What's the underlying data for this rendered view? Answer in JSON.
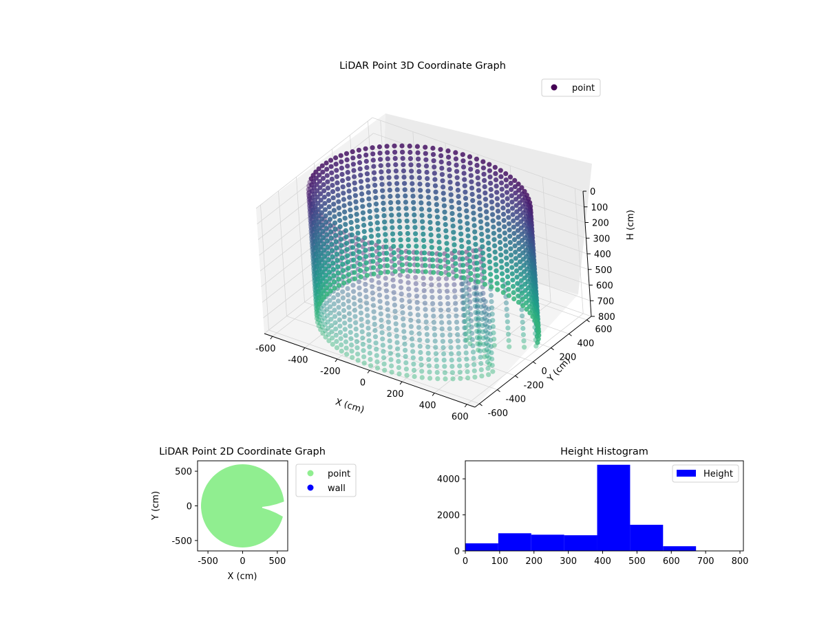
{
  "chart_data": [
    {
      "type": "scatter",
      "projection": "3d",
      "title": "LiDAR Point 3D Coordinate Graph",
      "xlabel": "X (cm)",
      "ylabel": "Y (cm)",
      "zlabel": "H (cm)",
      "xlim": [
        -650,
        650
      ],
      "ylim": [
        -650,
        650
      ],
      "zlim": [
        800,
        0
      ],
      "x_ticks": [
        -600,
        -400,
        -200,
        0,
        200,
        400,
        600
      ],
      "y_ticks": [
        -600,
        -400,
        -200,
        0,
        200,
        400,
        600
      ],
      "z_ticks": [
        0,
        100,
        200,
        300,
        400,
        500,
        600,
        700,
        800
      ],
      "legend": {
        "placement": "top-right",
        "entries": [
          "point"
        ]
      },
      "colormap": "viridis",
      "series": [
        {
          "name": "point",
          "shape": "cylindrical wall of points with an inward notch",
          "radius": 600,
          "h_range": [
            0,
            800
          ],
          "notch_angle_deg": [
            -25,
            15
          ],
          "notch_depth_cm": 370
        }
      ],
      "colors": {
        "legend_marker": "#440154"
      }
    },
    {
      "type": "scatter",
      "title": "LiDAR Point 2D Coordinate Graph",
      "xlabel": "X (cm)",
      "ylabel": "Y (cm)",
      "xlim": [
        -650,
        650
      ],
      "ylim": [
        -650,
        650
      ],
      "x_ticks": [
        -500,
        0,
        500
      ],
      "y_ticks": [
        -500,
        0,
        500
      ],
      "legend": {
        "placement": "outside-right",
        "entries": [
          "point",
          "wall"
        ]
      },
      "series": [
        {
          "name": "point",
          "color": "#90ee90",
          "shape": "disc with notch",
          "radius": 600
        },
        {
          "name": "wall",
          "color": "#0000ff"
        }
      ]
    },
    {
      "type": "bar",
      "subtype": "histogram",
      "title": "Height Histogram",
      "xlabel": "",
      "ylabel": "",
      "xlim": [
        0,
        810
      ],
      "ylim": [
        0,
        5000
      ],
      "x_ticks": [
        0,
        100,
        200,
        300,
        400,
        500,
        600,
        700,
        800
      ],
      "y_ticks": [
        0,
        2000,
        4000
      ],
      "bin_edges": [
        0,
        96,
        192,
        288,
        384,
        480,
        576,
        672,
        768
      ],
      "values": [
        420,
        980,
        900,
        870,
        4780,
        1450,
        260,
        0
      ],
      "legend": {
        "placement": "top-right",
        "entries": [
          "Height"
        ]
      },
      "series": [
        {
          "name": "Height",
          "color": "#0000ff"
        }
      ]
    }
  ]
}
